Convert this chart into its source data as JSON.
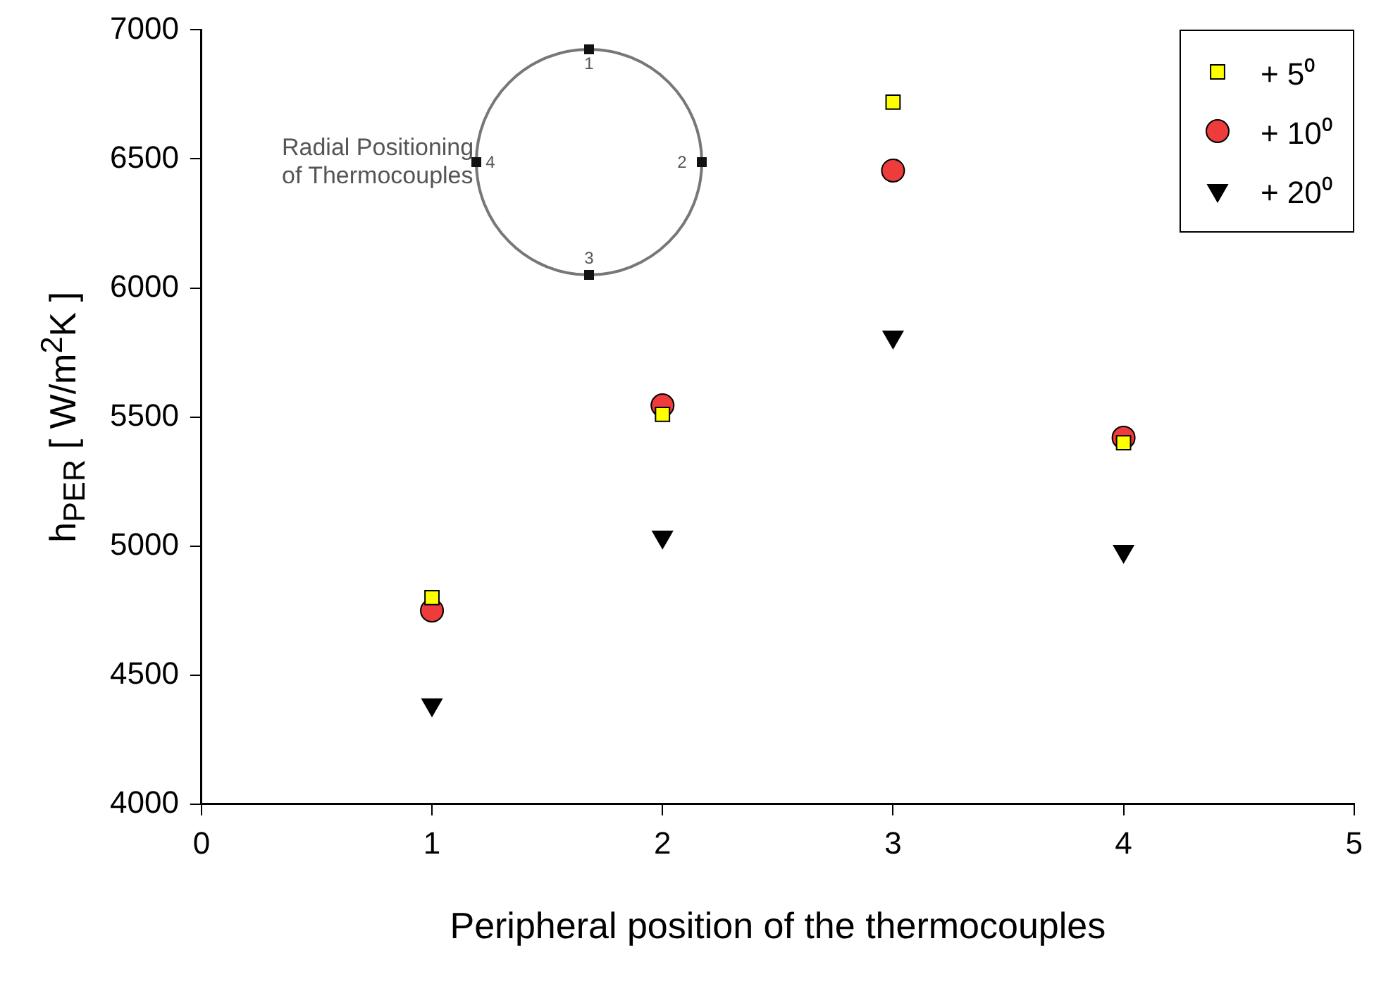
{
  "chart_data": {
    "type": "scatter",
    "xlabel": "Peripheral position of the thermocouples",
    "ylabel": "h$_{PER}$  [ W/m$^{2}$K ]",
    "x": [
      1,
      2,
      3,
      4
    ],
    "series": [
      {
        "name": "+ 5⁰",
        "color": "#ffff00",
        "marker": "square",
        "values": [
          4800,
          5510,
          6720,
          5400
        ]
      },
      {
        "name": "+ 10⁰",
        "color": "#ee3b3b",
        "marker": "circle",
        "values": [
          4750,
          5545,
          6455,
          5420
        ]
      },
      {
        "name": "+ 20⁰",
        "color": "#000000",
        "marker": "triangle",
        "values": [
          4385,
          5035,
          5810,
          4980
        ]
      }
    ],
    "xlim": [
      0,
      5
    ],
    "xticks": [
      0,
      1,
      2,
      3,
      4,
      5
    ],
    "ylim": [
      4000,
      7000
    ],
    "yticks": [
      4000,
      4500,
      5000,
      5500,
      6000,
      6500,
      7000
    ],
    "grid": false,
    "legend": "top right",
    "annotations": [
      "Radial Positioning of Thermocouples",
      "1",
      "2",
      "3",
      "4"
    ]
  }
}
